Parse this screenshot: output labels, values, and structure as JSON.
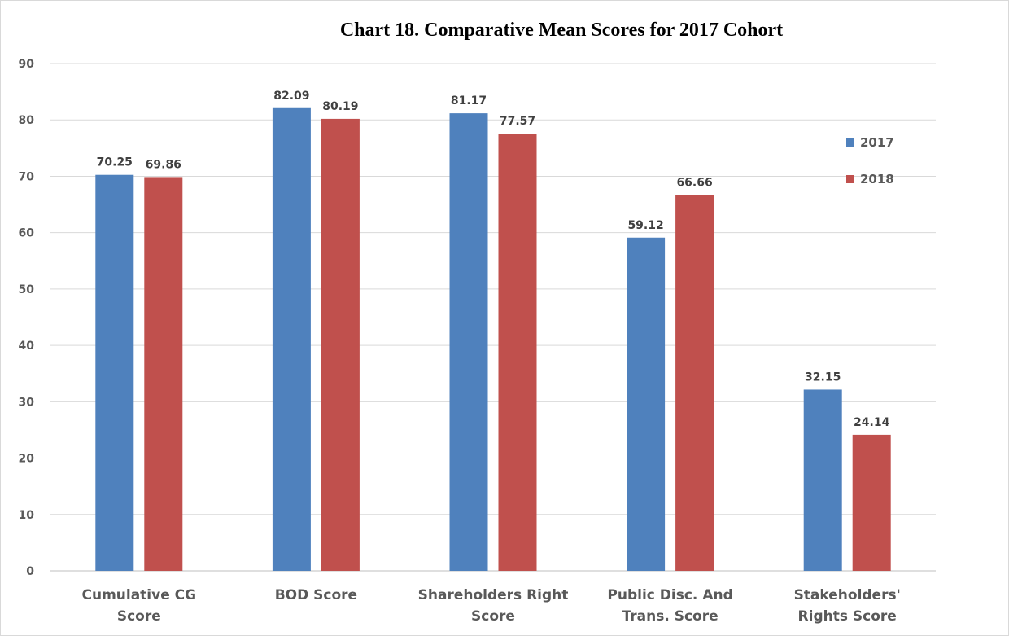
{
  "chart_data": {
    "type": "bar",
    "title": "Chart 18. Comparative Mean Scores for 2017 Cohort",
    "xlabel": "",
    "ylabel": "",
    "ylim": [
      0,
      90
    ],
    "yticks": [
      0,
      10,
      20,
      30,
      40,
      50,
      60,
      70,
      80,
      90
    ],
    "grid": true,
    "legend_position": "right",
    "categories": [
      [
        "Cumulative CG",
        "Score"
      ],
      [
        "BOD Score"
      ],
      [
        "Shareholders Right",
        "Score"
      ],
      [
        "Public Disc. And",
        "Trans. Score"
      ],
      [
        "Stakeholders'",
        "Rights Score"
      ]
    ],
    "series": [
      {
        "name": "2017",
        "color": "#4f81bd",
        "values": [
          70.25,
          82.09,
          81.17,
          59.12,
          32.15
        ],
        "labels": [
          "70.25",
          "82.09",
          "81.17",
          "59.12",
          "32.15"
        ]
      },
      {
        "name": "2018",
        "color": "#c0504d",
        "values": [
          69.86,
          80.19,
          77.57,
          66.66,
          24.14
        ],
        "labels": [
          "69.86",
          "80.19",
          "77.57",
          "66.66",
          "24.14"
        ]
      }
    ]
  }
}
